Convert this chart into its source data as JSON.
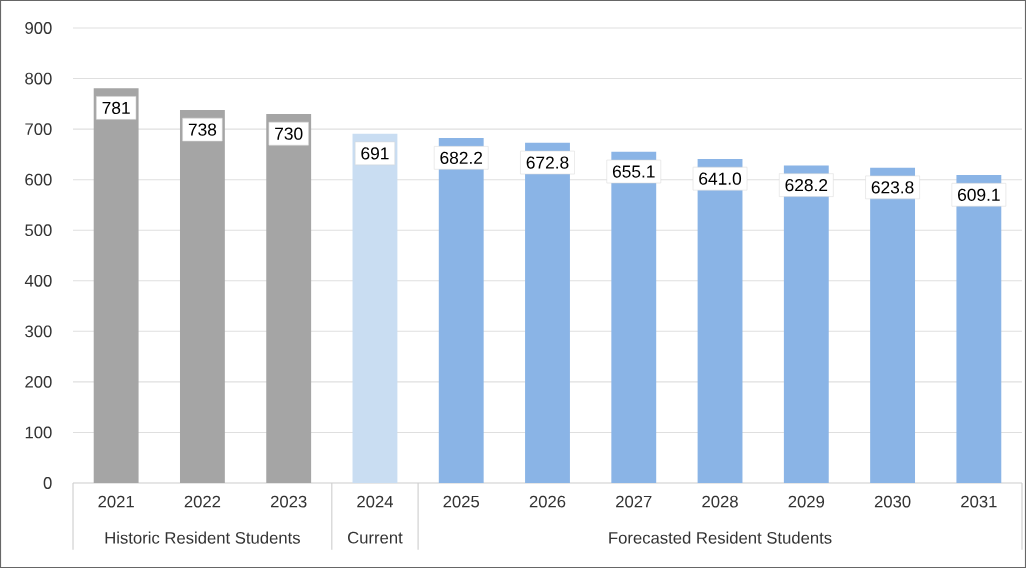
{
  "chart_data": {
    "type": "bar",
    "categories": [
      "2021",
      "2022",
      "2023",
      "2024",
      "2025",
      "2026",
      "2027",
      "2028",
      "2029",
      "2030",
      "2031"
    ],
    "values": [
      781,
      738,
      730,
      691,
      682.2,
      672.8,
      655.1,
      641.0,
      628.2,
      623.8,
      609.1
    ],
    "value_labels": [
      "781",
      "738",
      "730",
      "691",
      "682.2",
      "672.8",
      "655.1",
      "641.0",
      "628.2",
      "623.8",
      "609.1"
    ],
    "colors": [
      "#a5a5a5",
      "#a5a5a5",
      "#a5a5a5",
      "#c9ddf2",
      "#8ab4e6",
      "#8ab4e6",
      "#8ab4e6",
      "#8ab4e6",
      "#8ab4e6",
      "#8ab4e6",
      "#8ab4e6"
    ],
    "annotations": [
      "Historic Resident Students",
      "Current",
      "Forecasted Resident Students"
    ],
    "ylim": [
      0,
      900
    ],
    "yticks": [
      0,
      100,
      200,
      300,
      400,
      500,
      600,
      700,
      800,
      900
    ],
    "grid": "y"
  }
}
